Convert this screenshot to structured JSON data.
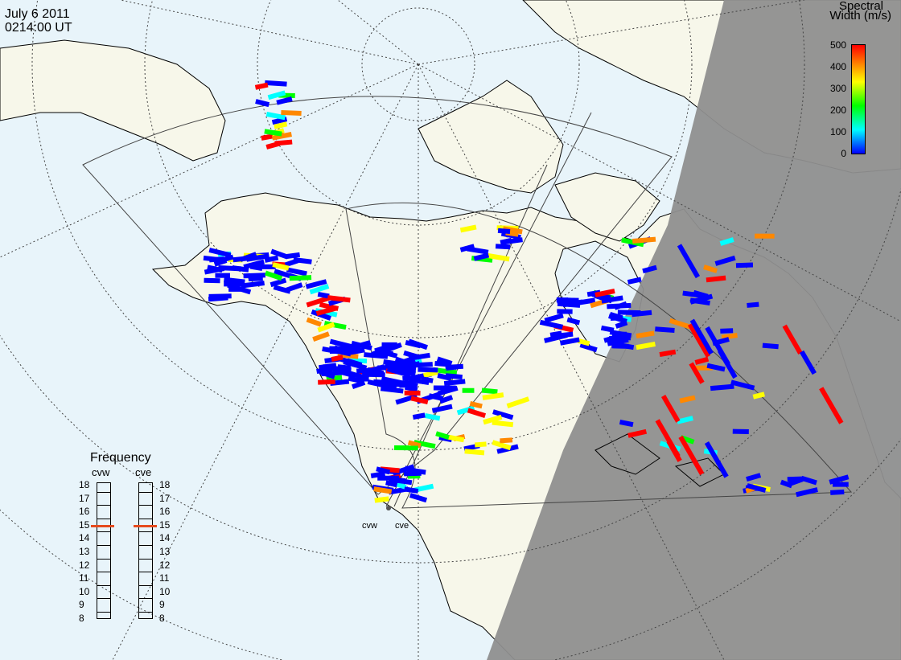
{
  "header": {
    "date": "July  6 2011",
    "time": "0214:00 UT"
  },
  "colorbar": {
    "title_line1": "Spectral",
    "title_line2": "Width (m/s)",
    "ticks": [
      "500",
      "400",
      "300",
      "200",
      "100",
      "0"
    ],
    "colors": [
      "#0000ff",
      "#00ffff",
      "#00ff00",
      "#ffff00",
      "#ff8800",
      "#ff0000"
    ]
  },
  "frequency": {
    "title": "Frequency",
    "radars": [
      "cvw",
      "cve"
    ],
    "ticks": [
      "18",
      "17",
      "16",
      "15",
      "14",
      "13",
      "12",
      "11",
      "10",
      "9",
      "8"
    ],
    "selected_mhz": {
      "cvw": 15,
      "cve": 15
    }
  },
  "sites": {
    "west": "cvw",
    "east": "cve"
  },
  "colors": {
    "ocean": "#e8f4fa",
    "land": "#f7f7ea",
    "night": "#8f8f8f",
    "coast": "#000000",
    "grid": "#444444",
    "marker": "#e64b1e"
  }
}
